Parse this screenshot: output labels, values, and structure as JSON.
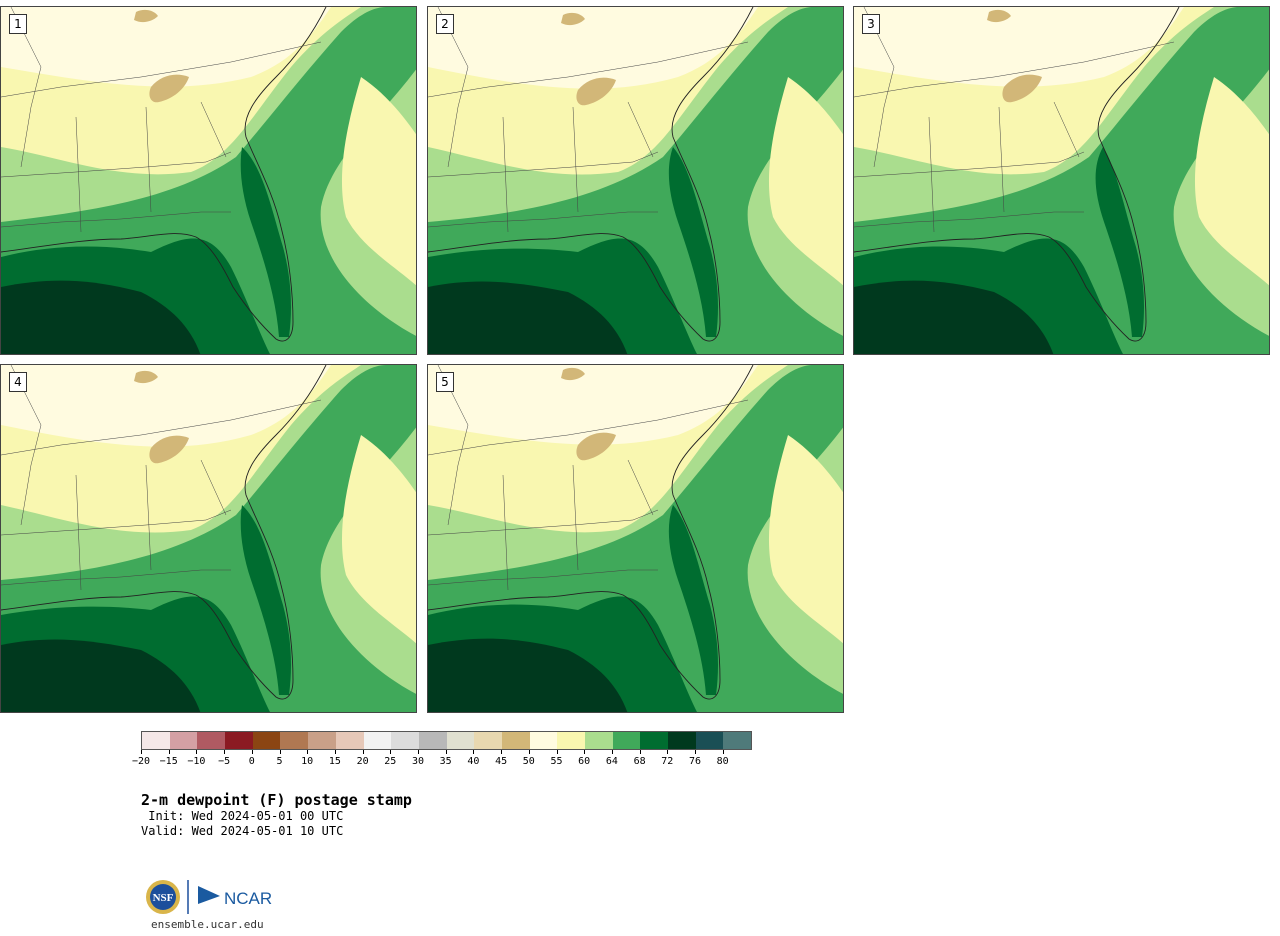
{
  "panels": [
    {
      "label": "1",
      "variant": 0
    },
    {
      "label": "2",
      "variant": 1
    },
    {
      "label": "3",
      "variant": 2
    },
    {
      "label": "4",
      "variant": 3
    },
    {
      "label": "5",
      "variant": 4
    }
  ],
  "colorbar": {
    "colors": [
      "#f5e8e8",
      "#d4a0a4",
      "#b05a62",
      "#8b1a22",
      "#8b4513",
      "#b07852",
      "#c9a088",
      "#e6c8b8",
      "#f2f2f2",
      "#dcdcdc",
      "#b8b8b8",
      "#e0e0d0",
      "#e8d8b0",
      "#d2b778",
      "#fffbe0",
      "#f9f7b0",
      "#aadd8e",
      "#40a95a",
      "#006d30",
      "#00391e",
      "#1a4f55",
      "#4f7a7a"
    ],
    "tick_labels": [
      "−20",
      "−15",
      "−10",
      "−5",
      "0",
      "5",
      "10",
      "15",
      "20",
      "25",
      "30",
      "35",
      "40",
      "45",
      "50",
      "55",
      "60",
      "64",
      "68",
      "72",
      "76",
      "80"
    ]
  },
  "title": "2-m dewpoint (F) postage stamp",
  "init": " Init: Wed 2024-05-01 00 UTC",
  "valid": "Valid: Wed 2024-05-01 10 UTC",
  "logo": {
    "nsf": "NSF",
    "ncar": "NCAR"
  },
  "url": "ensemble.ucar.edu"
}
